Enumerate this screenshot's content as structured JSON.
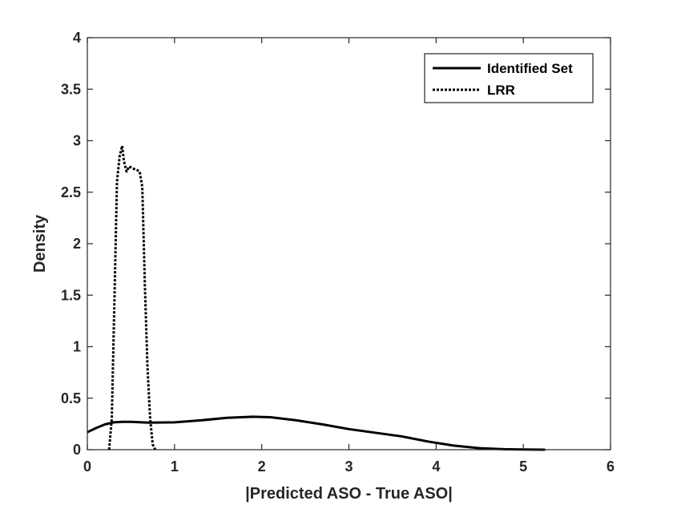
{
  "chart_data": {
    "type": "line",
    "title": "",
    "xlabel": "|Predicted ASO - True ASO|",
    "ylabel": "Density",
    "xlim": [
      0,
      6
    ],
    "ylim": [
      0,
      4
    ],
    "xticks": [
      "0",
      "1",
      "2",
      "3",
      "4",
      "5",
      "6"
    ],
    "yticks": [
      "0",
      "0.5",
      "1",
      "1.5",
      "2",
      "2.5",
      "3",
      "3.5",
      "4"
    ],
    "grid": false,
    "legend_position": "top-right",
    "series": [
      {
        "name": "Identified Set",
        "style": "solid",
        "color": "#000000",
        "x": [
          0,
          0.1,
          0.2,
          0.3,
          0.4,
          0.5,
          0.7,
          1.0,
          1.3,
          1.6,
          1.9,
          2.1,
          2.4,
          2.7,
          3.0,
          3.3,
          3.6,
          3.9,
          4.2,
          4.5,
          4.8,
          5.0,
          5.25
        ],
        "y": [
          0.17,
          0.21,
          0.245,
          0.265,
          0.27,
          0.27,
          0.262,
          0.265,
          0.285,
          0.31,
          0.32,
          0.315,
          0.285,
          0.245,
          0.2,
          0.165,
          0.13,
          0.08,
          0.04,
          0.015,
          0.004,
          0.002,
          0.0
        ]
      },
      {
        "name": "LRR",
        "style": "dotted",
        "color": "#000000",
        "x": [
          0.25,
          0.28,
          0.31,
          0.34,
          0.37,
          0.4,
          0.42,
          0.45,
          0.48,
          0.52,
          0.56,
          0.6,
          0.63,
          0.66,
          0.69,
          0.72,
          0.75,
          0.78
        ],
        "y": [
          0.0,
          0.3,
          1.4,
          2.6,
          2.85,
          2.95,
          2.8,
          2.7,
          2.75,
          2.73,
          2.72,
          2.7,
          2.55,
          1.6,
          0.8,
          0.3,
          0.05,
          0.0
        ]
      }
    ]
  }
}
